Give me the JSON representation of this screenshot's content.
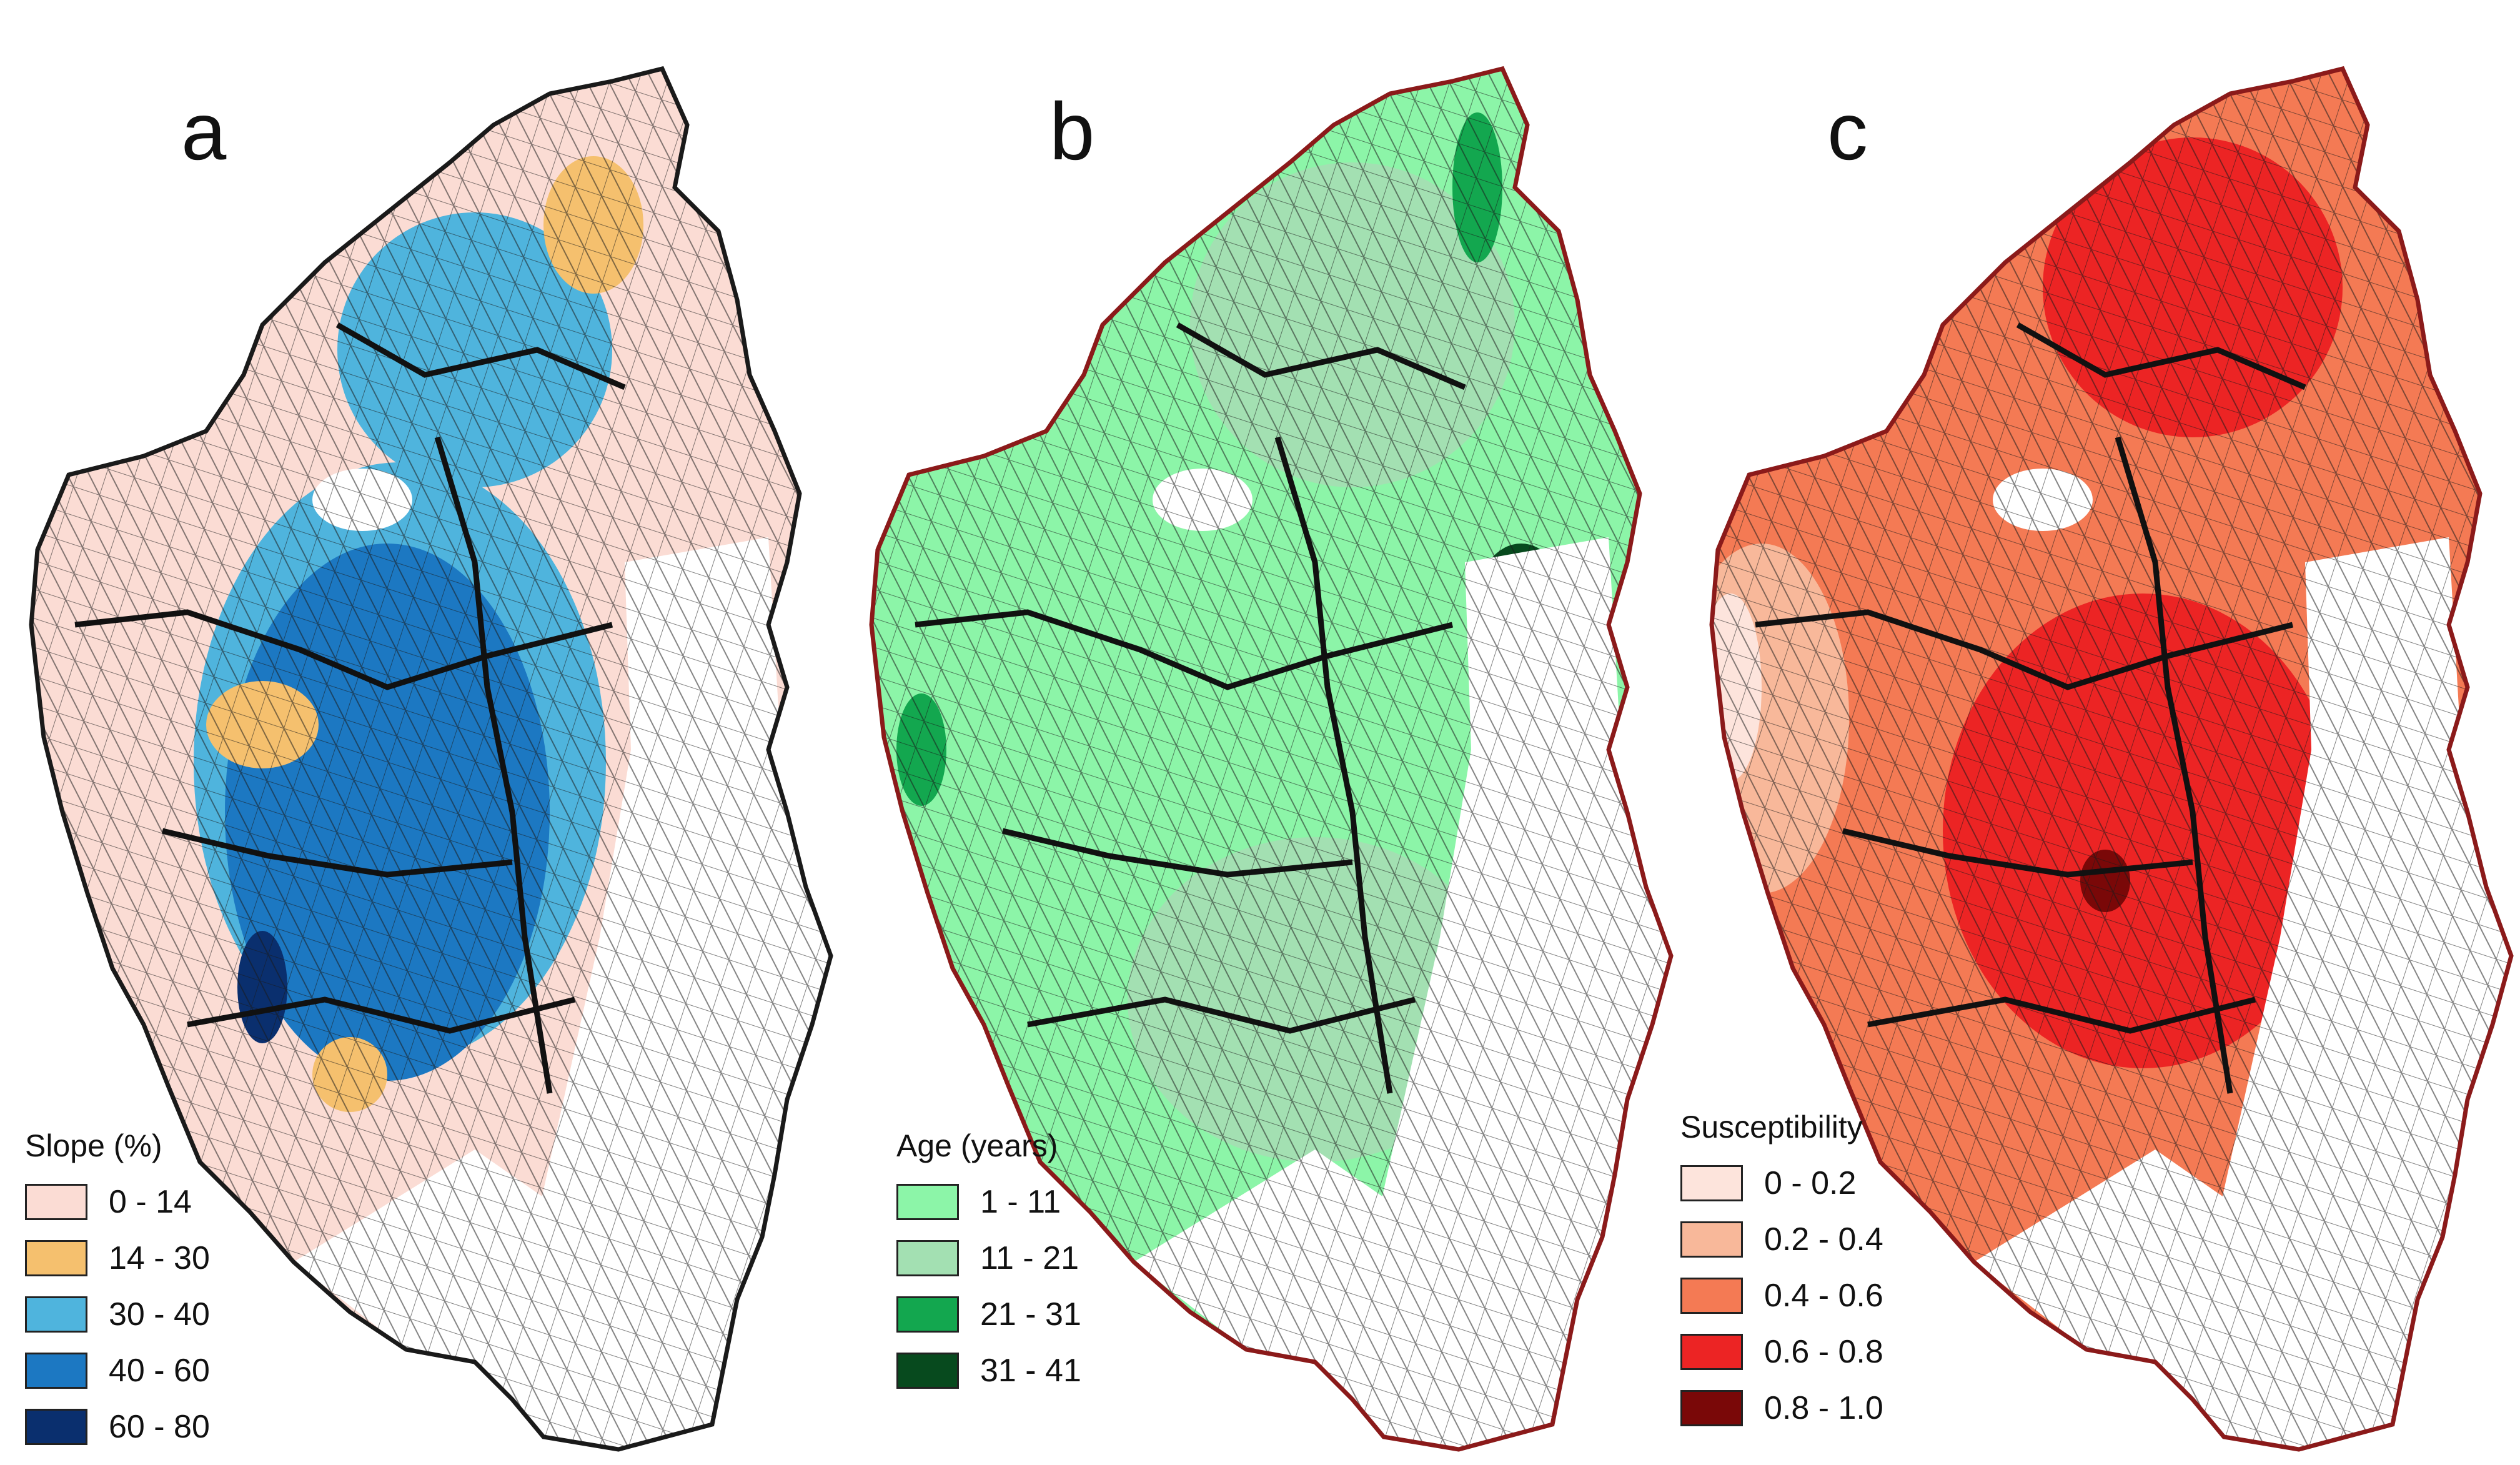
{
  "panels": [
    {
      "letter": "a",
      "legend": {
        "title": "Slope (%)",
        "items": [
          {
            "label": "0 - 14",
            "color": "#fbdcd4"
          },
          {
            "label": "14 - 30",
            "color": "#f5c06e"
          },
          {
            "label": "30 - 40",
            "color": "#4fb4dd"
          },
          {
            "label": "40 - 60",
            "color": "#1c78c2"
          },
          {
            "label": "60 - 80",
            "color": "#0a2f6e"
          }
        ]
      },
      "outline_color": "#1a1a1a"
    },
    {
      "letter": "b",
      "legend": {
        "title": "Age (years)",
        "items": [
          {
            "label": "1 - 11",
            "color": "#8cf5a8"
          },
          {
            "label": "11 - 21",
            "color": "#a3e0b2"
          },
          {
            "label": "21 - 31",
            "color": "#13a74f"
          },
          {
            "label": "31 - 41",
            "color": "#074a1e"
          }
        ]
      },
      "outline_color": "#8b1a1a"
    },
    {
      "letter": "c",
      "legend": {
        "title": "Susceptibility",
        "items": [
          {
            "label": "0 - 0.2",
            "color": "#fde4dc"
          },
          {
            "label": "0.2 - 0.4",
            "color": "#f8b89a"
          },
          {
            "label": "0.4 - 0.6",
            "color": "#f47a54"
          },
          {
            "label": "0.6 - 0.8",
            "color": "#ec2424"
          },
          {
            "label": "0.8 - 1.0",
            "color": "#7a0808"
          }
        ]
      },
      "outline_color": "#8b1a1a"
    }
  ]
}
